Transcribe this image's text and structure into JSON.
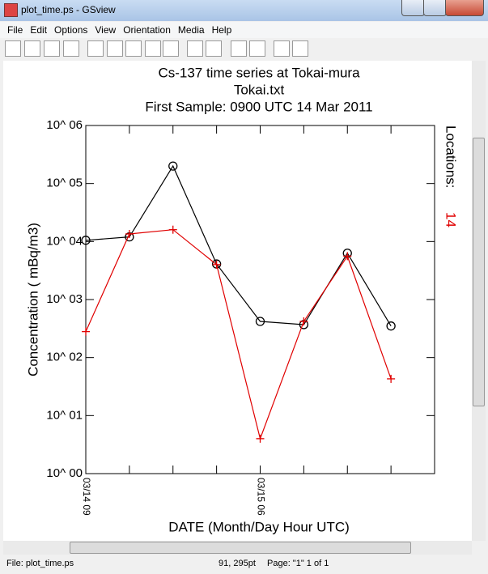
{
  "window": {
    "title": "plot_time.ps - GSview",
    "menu": [
      "File",
      "Edit",
      "Options",
      "View",
      "Orientation",
      "Media",
      "Help"
    ],
    "status": {
      "file": "File: plot_time.ps",
      "position": "91, 295pt",
      "page": "Page: \"1\"  1 of 1"
    }
  },
  "chart_data": {
    "type": "line",
    "title": "Cs-137 time series at Tokai-mura",
    "subtitle": "Tokai.txt",
    "annotation": "First Sample: 0900 UTC 14 Mar 2011",
    "side_label": "Locations:",
    "side_value": "14",
    "side_value_color": "#e00000",
    "x_label": "DATE (Month/Day Hour UTC)",
    "y_label": "Concentration ( mBq/m3)",
    "categories": [
      "03/14 09",
      null,
      null,
      null,
      "03/15 06",
      null,
      null,
      null
    ],
    "log_y": true,
    "ylim": [
      1,
      1000000
    ],
    "yticks": [
      {
        "value": 1,
        "label": "10^ 00"
      },
      {
        "value": 10,
        "label": "10^ 01"
      },
      {
        "value": 100,
        "label": "10^ 02"
      },
      {
        "value": 1000,
        "label": "10^ 03"
      },
      {
        "value": 10000,
        "label": "10^ 04"
      },
      {
        "value": 100000,
        "label": "10^ 05"
      },
      {
        "value": 1000000,
        "label": "10^ 06"
      }
    ],
    "series": [
      {
        "color": "#000000",
        "marker": "circle",
        "values": [
          10500,
          12000,
          200000,
          4100,
          420,
          370,
          6300,
          350
        ]
      },
      {
        "color": "#e00000",
        "marker": "plus",
        "values": [
          280,
          13500,
          16000,
          4000,
          4,
          420,
          5600,
          43
        ]
      }
    ]
  }
}
